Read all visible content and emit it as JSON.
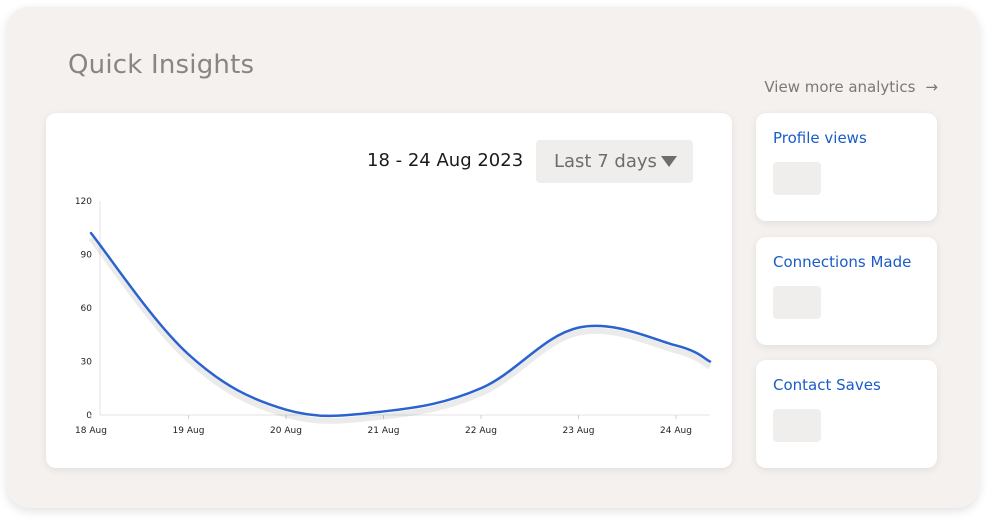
{
  "header": {
    "title": "Quick Insights",
    "view_more_label": "View more analytics",
    "view_more_icon": "arrow-right-icon"
  },
  "chart_card": {
    "date_range": "18 - 24 Aug 2023",
    "range_select": {
      "selected": "Last 7 days",
      "icon": "caret-down-icon"
    }
  },
  "chart_data": {
    "type": "line",
    "x": [
      "18 Aug",
      "19 Aug",
      "20 Aug",
      "21 Aug",
      "22 Aug",
      "23 Aug",
      "24 Aug"
    ],
    "y_ticks": [
      0,
      30,
      60,
      90,
      120
    ],
    "ylim": [
      0,
      120
    ],
    "series": [
      {
        "values": [
          102,
          34,
          3,
          2,
          15,
          49,
          39
        ],
        "trailing_value": 30,
        "color": "#2a62cf"
      }
    ],
    "grid": false,
    "legend": "none"
  },
  "stats": [
    {
      "label": "Profile views"
    },
    {
      "label": "Connections Made"
    },
    {
      "label": "Contact Saves"
    }
  ],
  "colors": {
    "accent": "#1a5cc8",
    "panel_bg": "#f4f1ef",
    "line": "#2a62cf"
  }
}
